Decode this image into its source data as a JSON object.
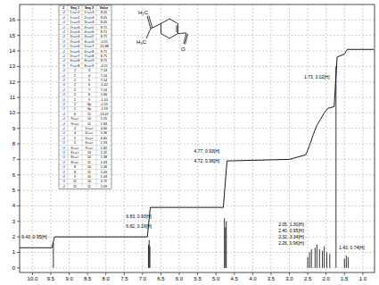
{
  "chart_data": {
    "type": "spectrum",
    "x": [
      9.43,
      6.84,
      6.82,
      6.8,
      4.77,
      4.74,
      4.72,
      2.5,
      2.45,
      2.4,
      2.3,
      2.25,
      2.18,
      2.1,
      2.05,
      1.98,
      1.9,
      1.73,
      1.5,
      1.45,
      1.4
    ],
    "values": [
      1.6,
      1.5,
      1.8,
      1.4,
      3.2,
      2.6,
      3.0,
      0.7,
      1.0,
      1.2,
      1.3,
      1.5,
      1.2,
      1.1,
      1.4,
      1.0,
      0.9,
      13.0,
      0.6,
      0.8,
      0.7
    ],
    "integral": {
      "x": [
        10.35,
        9.47,
        9.4,
        6.87,
        6.79,
        4.8,
        4.7,
        3.0,
        2.55,
        2.45,
        2.35,
        2.25,
        2.15,
        2.05,
        1.95,
        1.78,
        1.7,
        1.5,
        1.42,
        0.7
      ],
      "values": [
        1.3,
        1.3,
        2.0,
        2.0,
        3.9,
        3.9,
        6.9,
        7.0,
        7.3,
        7.9,
        8.6,
        9.2,
        9.6,
        10.0,
        10.3,
        10.4,
        13.6,
        13.8,
        14.1,
        14.1
      ]
    },
    "annotations": [
      {
        "text": "9.43, 0.95[H]",
        "x": 10.3,
        "y": 1.9
      },
      {
        "text": "6.83, 0.93[H]",
        "x": 7.45,
        "y": 3.2
      },
      {
        "text": "6.82, 0.19[H]",
        "x": 7.45,
        "y": 2.6
      },
      {
        "text": "4.77, 0.93[H]",
        "x": 5.6,
        "y": 7.4
      },
      {
        "text": "4.72, 0.96[H]",
        "x": 5.6,
        "y": 6.8
      },
      {
        "text": "2.05, 1.30[H]",
        "x": 3.3,
        "y": 2.7
      },
      {
        "text": "2.40, 0.95[H]",
        "x": 3.3,
        "y": 2.3
      },
      {
        "text": "2.32, 3.34[H]",
        "x": 3.3,
        "y": 1.9
      },
      {
        "text": "2.26, 0.96[H]",
        "x": 3.3,
        "y": 1.5
      },
      {
        "text": "1.73, 3.02[H]",
        "x": 2.6,
        "y": 12.2
      },
      {
        "text": "1.43, 0.74[H]",
        "x": 1.65,
        "y": 1.2
      }
    ],
    "xlim": [
      10.35,
      0.68
    ],
    "xticks": [
      {
        "value": 10,
        "label": "10.0"
      },
      9.5,
      {
        "value": 9,
        "label": "9.0"
      },
      8.5,
      {
        "value": 8,
        "label": "8.0"
      },
      7.5,
      {
        "value": 7,
        "label": "7.0"
      },
      6.5,
      {
        "value": 6,
        "label": "6.0"
      },
      5.5,
      {
        "value": 5,
        "label": "5.0"
      },
      4.5,
      {
        "value": 4,
        "label": "4.0"
      },
      3.5,
      {
        "value": 3,
        "label": "3.0"
      },
      2.5,
      {
        "value": 2,
        "label": "2.0"
      },
      1.5,
      {
        "value": 1,
        "label": "1.0"
      }
    ],
    "ylim": [
      -0.3,
      17
    ],
    "yticks": [
      0,
      1,
      2,
      3,
      4,
      5,
      6,
      7,
      8,
      9,
      10,
      11,
      12,
      13,
      14,
      15,
      16
    ],
    "grid": true,
    "color": "#000000"
  },
  "table": {
    "header": [
      "J",
      "Seq 1",
      "Seq 2",
      "Value"
    ],
    "rows": [
      [
        "²J",
        "1<=>2",
        "1<=>3",
        "8.05"
      ],
      [
        "³J",
        "1<=>2",
        "2<=>4",
        "8.05"
      ],
      [
        "³J",
        "1<=>3",
        "3<=>4",
        "8.05"
      ],
      [
        "³J",
        "2<=>4",
        "4<=>5",
        "8.71"
      ],
      [
        "³J",
        "2<=>4",
        "4<=>6",
        "8.71"
      ],
      [
        "³J",
        "3<=>4",
        "4<=>5",
        "8.71"
      ],
      [
        "⁴J",
        "3<=>4",
        "4<=>6",
        "-0.51"
      ],
      [
        "²J",
        "5<=>6",
        "5<=>7",
        "-10.88"
      ],
      [
        "³J",
        "5<=>6",
        "6<=>8",
        "8.71"
      ],
      [
        "³J",
        "5<=>7",
        "7<=>8",
        "8.71"
      ],
      [
        "³J",
        "6<=>8",
        "8<=>9",
        "8.71"
      ],
      [
        "⁴J",
        "7<=>8",
        "8<=>9",
        "-0.51"
      ],
      [
        "³J",
        "2",
        "3",
        "7.14"
      ],
      [
        "³J",
        "2",
        "4",
        "7.14"
      ],
      [
        "³J",
        "2",
        "5",
        "7.14"
      ],
      [
        "⁴J",
        "2",
        "6",
        "-1.42"
      ],
      [
        "³J",
        "2",
        "7",
        "7.14"
      ],
      [
        "⁴J",
        "2",
        "8",
        "1.66"
      ],
      [
        "⁴J",
        "2",
        "9",
        "-1.10"
      ],
      [
        "⁴J",
        "2",
        "8p",
        "-1.59"
      ],
      [
        "⁴J",
        "2",
        "9p",
        "-1.59"
      ],
      [
        "²J",
        "6",
        "11",
        "-13.07"
      ],
      [
        "³J",
        "9<=>",
        "10",
        "1.55"
      ],
      [
        "³J",
        "9<=>",
        "11",
        "1.83"
      ],
      [
        "³J",
        "4",
        "5<=>",
        "4.60"
      ],
      [
        "⁴J",
        "4",
        "6<=>",
        "1.96"
      ],
      [
        "³J",
        "5",
        "5<=>",
        "4.60"
      ],
      [
        "⁴J",
        "5",
        "6<=>",
        "1.93"
      ],
      [
        "⁴J",
        "6<=>",
        "9<=>",
        "1.82"
      ],
      [
        "⁴J",
        "6<=>",
        "10",
        "1.32"
      ],
      [
        "⁴J",
        "8<=>",
        "10",
        "1.38"
      ],
      [
        "⁴J",
        "8<=>",
        "11",
        "1.63"
      ],
      [
        "⁴J",
        "8",
        "10",
        "1.36"
      ],
      [
        "⁴J",
        "8",
        "11",
        "1.43"
      ],
      [
        "⁴J",
        "9",
        "10",
        "1.43"
      ],
      [
        "⁴J",
        "11",
        "10",
        "0.75"
      ],
      [
        "²J",
        "11",
        "11",
        "2.09"
      ]
    ]
  },
  "structure": {
    "labels": [
      "H₂C",
      "H₃C",
      "O"
    ]
  }
}
